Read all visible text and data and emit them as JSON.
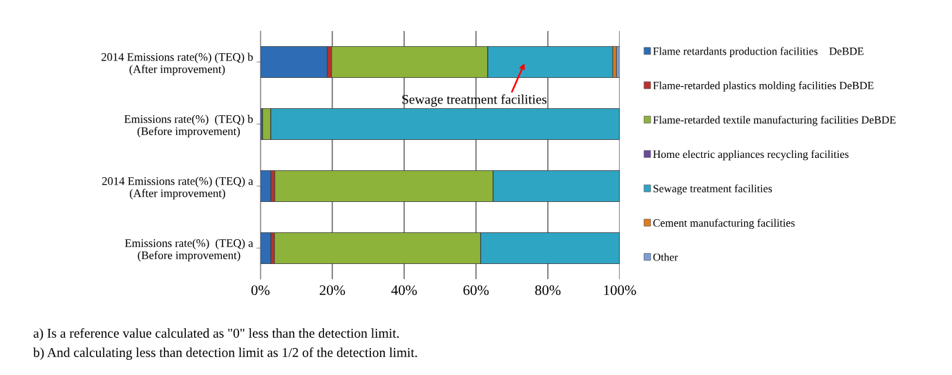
{
  "chart_data": {
    "type": "bar",
    "orientation": "horizontal",
    "stacked": true,
    "categories": [
      "2014 Emissions rate(%) (TEQ) b\n(After improvement)",
      "Emissions rate(%)  (TEQ) b\n(Before improvement)",
      "2014 Emissions rate(%) (TEQ) a\n(After improvement)",
      "Emissions rate(%)  (TEQ) a\n(Before improvement)"
    ],
    "series": [
      {
        "name": "Flame retardants production facilities    DeBDE",
        "color": "#2e6db5",
        "values": [
          18.6,
          0.6,
          2.9,
          2.9
        ]
      },
      {
        "name": "Flame-retarded plastics molding facilities DeBDE",
        "color": "#b8312f",
        "values": [
          1.2,
          0,
          1.1,
          1.0
        ]
      },
      {
        "name": "Flame-retarded textile manufacturing facilities DeBDE",
        "color": "#8db33a",
        "values": [
          43.5,
          2.3,
          60.8,
          57.4
        ]
      },
      {
        "name": "Home electric appliances recycling facilities",
        "color": "#6a4a9a",
        "values": [
          0,
          0,
          0,
          0
        ]
      },
      {
        "name": "Sewage treatment facilities",
        "color": "#2fa5c4",
        "values": [
          34.8,
          97.1,
          35.2,
          38.7
        ]
      },
      {
        "name": "Cement manufacturing facilities",
        "color": "#e07b1f",
        "values": [
          1.0,
          0,
          0,
          0
        ]
      },
      {
        "name": "Other",
        "color": "#7b9fd4",
        "values": [
          0.9,
          0,
          0,
          0
        ]
      }
    ],
    "xlim": [
      0,
      100
    ],
    "xticks": [
      {
        "value": 0,
        "label": "0%"
      },
      {
        "value": 20,
        "label": "20%"
      },
      {
        "value": 40,
        "label": "40%"
      },
      {
        "value": 60,
        "label": "60%"
      },
      {
        "value": 80,
        "label": "80%"
      },
      {
        "value": 100,
        "label": "100%"
      }
    ],
    "grid": "x",
    "legend": "right",
    "annotations": [
      "Sewage treatment facilities",
      "a) Is a reference value calculated as \"0\" less than the detection limit.",
      "b) And calculating less than detection limit as 1/2 of the detection limit."
    ]
  }
}
